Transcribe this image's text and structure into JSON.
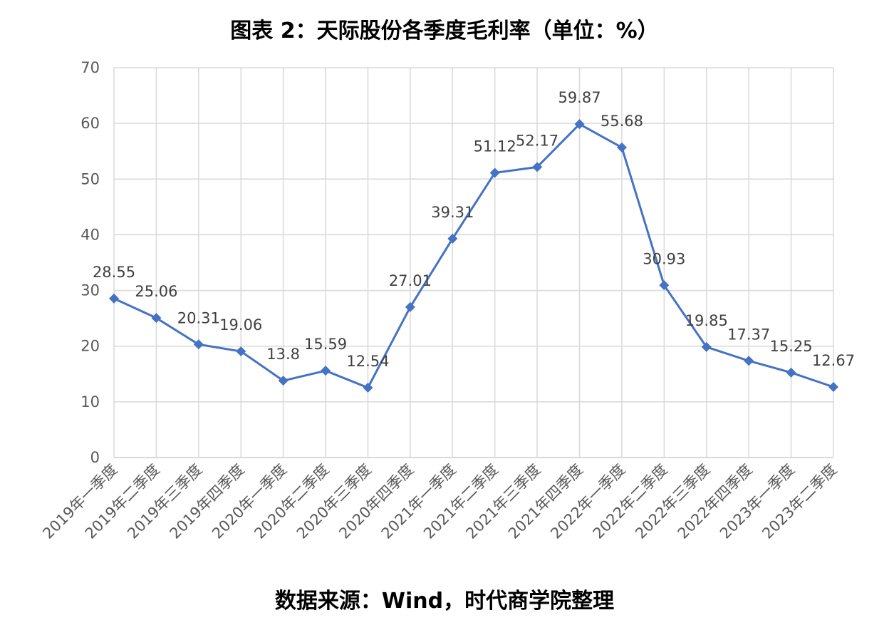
{
  "chart_data": {
    "type": "line",
    "title": "图表 2：天际股份各季度毛利率（单位：%）",
    "source": "数据来源：Wind，时代商学院整理",
    "xlabel": "",
    "ylabel": "",
    "ylim": [
      0,
      70
    ],
    "yticks": [
      0,
      10,
      20,
      30,
      40,
      50,
      60,
      70
    ],
    "grid": true,
    "legend": "none",
    "categories": [
      "2019年一季度",
      "2019年二季度",
      "2019年三季度",
      "2019年四季度",
      "2020年一季度",
      "2020年二季度",
      "2020年三季度",
      "2020年四季度",
      "2021年一季度",
      "2021年二季度",
      "2021年三季度",
      "2021年四季度",
      "2022年一季度",
      "2022年二季度",
      "2022年三季度",
      "2022年四季度",
      "2023年一季度",
      "2023年二季度"
    ],
    "series": [
      {
        "name": "毛利率",
        "color": "#4472c4",
        "values": [
          28.55,
          25.06,
          20.31,
          19.06,
          13.8,
          15.59,
          12.54,
          27.01,
          39.31,
          51.12,
          52.17,
          59.87,
          55.68,
          30.93,
          19.85,
          17.37,
          15.25,
          12.67
        ]
      }
    ]
  }
}
